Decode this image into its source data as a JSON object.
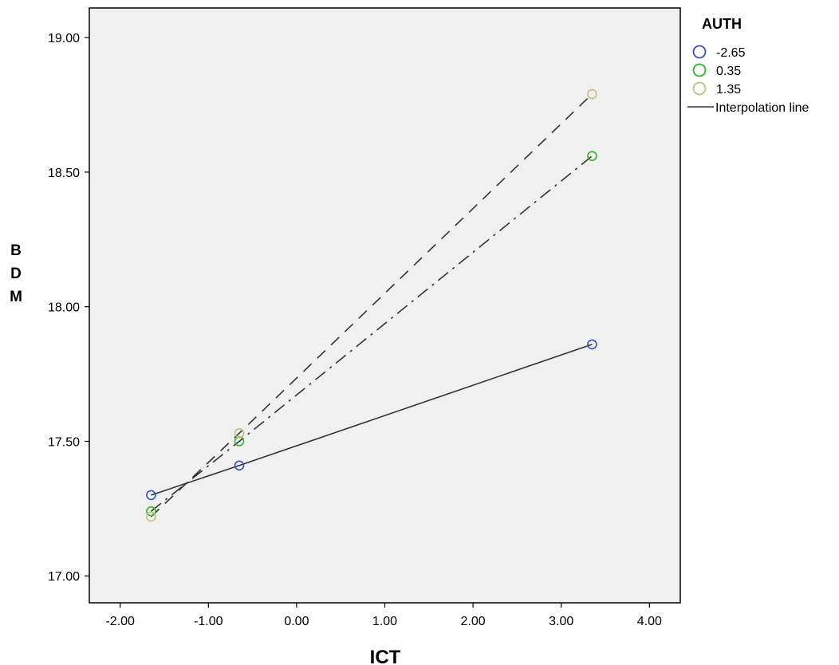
{
  "chart_data": {
    "type": "line",
    "xlabel": "ICT",
    "ylabel": "BDM",
    "xlim": [
      -2.35,
      4.35
    ],
    "ylim": [
      16.9,
      19.11
    ],
    "x_ticks": [
      -2.0,
      -1.0,
      0.0,
      1.0,
      2.0,
      3.0,
      4.0
    ],
    "x_tick_labels": [
      "-2.00",
      "-1.00",
      "0.00",
      "1.00",
      "2.00",
      "3.00",
      "4.00"
    ],
    "y_ticks": [
      17.0,
      17.5,
      18.0,
      18.5,
      19.0
    ],
    "y_tick_labels": [
      "17.00",
      "17.50",
      "18.00",
      "18.50",
      "19.00"
    ],
    "grid": false,
    "plot_background": "#f0f0f0",
    "legend": {
      "title": "AUTH",
      "placement": "right",
      "interpolation_label": "Interpolation line"
    },
    "series": [
      {
        "name": "-2.65",
        "color": "#3b4fc4",
        "dash": "solid",
        "x": [
          -1.65,
          -0.65,
          3.35
        ],
        "y": [
          17.3,
          17.41,
          17.86
        ]
      },
      {
        "name": "0.35",
        "color": "#2fb52f",
        "dash": "dashdot",
        "x": [
          -1.65,
          -0.65,
          3.35
        ],
        "y": [
          17.24,
          17.5,
          18.56
        ]
      },
      {
        "name": "1.35",
        "color": "#c8bd7a",
        "dash": "dashed",
        "x": [
          -1.65,
          -0.65,
          3.35
        ],
        "y": [
          17.22,
          17.53,
          18.79
        ]
      }
    ]
  }
}
